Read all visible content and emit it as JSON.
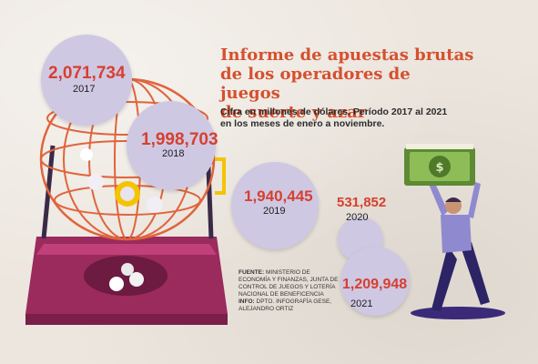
{
  "header": {
    "title": "Informe de apuestas brutas\nde los operadores de juegos\nde suerte y azar",
    "subtitle": "Cifra en millones de dólares. Período 2017 al 2021\nen los meses de enero a noviembre."
  },
  "source": {
    "label1": "FUENTE:",
    "text1": "MINISTERIO DE ECONOMÍA Y FINANZAS, JUNTA DE CONTROL DE JUEGOS Y LOTERÍA NACIONAL DE BENEFICENCIA",
    "label2": "INFO:",
    "text2": "DPTO. INFOGRAFÍA GESE, ALEJANDRO ORTIZ"
  },
  "chart_data": {
    "type": "bubble",
    "title": "Informe de apuestas brutas de los operadores de juegos de suerte y azar",
    "categories": [
      "2017",
      "2018",
      "2019",
      "2020",
      "2021"
    ],
    "values": [
      2071734,
      1998703,
      1940445,
      531852,
      1209948
    ],
    "value_labels": [
      "2,071,734",
      "1,998,703",
      "1,940,445",
      "531,852",
      "1,209,948"
    ]
  },
  "colors": {
    "accent": "#d6502f",
    "bubble": "#cfc8e3",
    "cage": "#e0643c",
    "base": "#b0306a",
    "money": "#6f9a3e"
  }
}
